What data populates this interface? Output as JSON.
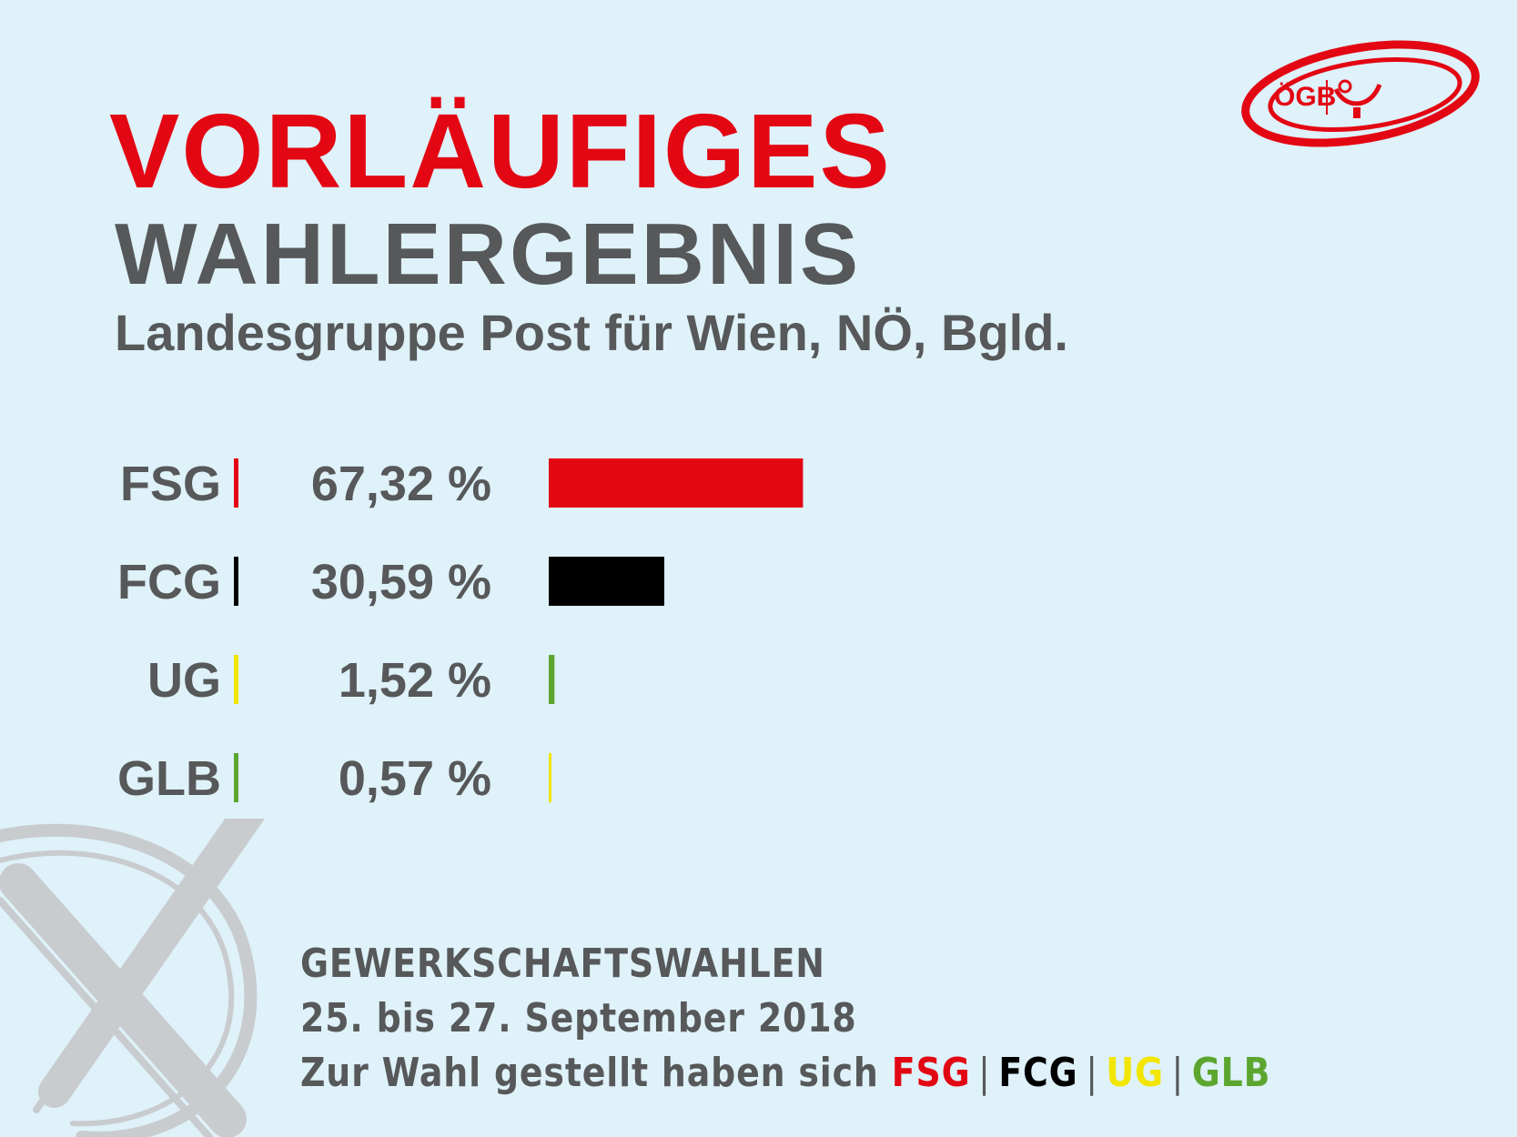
{
  "title": "VORLÄUFIGES",
  "subtitle_line1": "WAHLERGEBNIS",
  "subtitle_line2": "Landesgruppe Post für Wien, NÖ, Bgld.",
  "logo_text": "ÖGB",
  "colors": {
    "red": "#e30613",
    "grey": "#565859",
    "black": "#000000",
    "yellow": "#f2e500",
    "green": "#5ca630",
    "background": "#dff1f9"
  },
  "chart_data": {
    "type": "bar",
    "orientation": "horizontal",
    "categories": [
      "FSG",
      "FCG",
      "UG",
      "GLB"
    ],
    "values": [
      67.32,
      30.59,
      1.52,
      0.57
    ],
    "value_labels": [
      "67,32 %",
      "30,59 %",
      "1,52 %",
      "0,57 %"
    ],
    "bar_colors": [
      "#e30613",
      "#000000",
      "#5ca630",
      "#f2e500"
    ],
    "divider_colors": [
      "#e30613",
      "#000000",
      "#f2e500",
      "#5ca630"
    ],
    "xlim": [
      0,
      100
    ]
  },
  "footer": {
    "line1": "GEWERKSCHAFTSWAHLEN",
    "line2": "25. bis 27. September 2018",
    "line3_prefix": "Zur Wahl gestellt haben sich",
    "parties": [
      {
        "name": "FSG",
        "color": "#e30613"
      },
      {
        "name": "FCG",
        "color": "#000000"
      },
      {
        "name": "UG",
        "color": "#f2e500"
      },
      {
        "name": "GLB",
        "color": "#5ca630"
      }
    ],
    "separator": "|"
  }
}
